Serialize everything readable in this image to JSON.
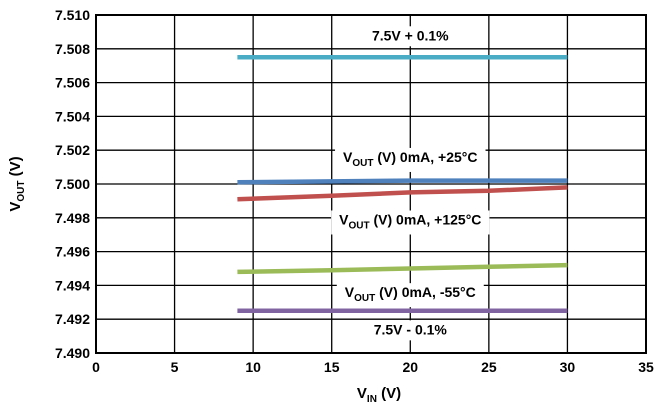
{
  "chart_data": {
    "type": "line",
    "xlabel": {
      "main": "V",
      "sub": "IN",
      "suffix": " (V)"
    },
    "ylabel": {
      "main": "V",
      "sub": "OUT",
      "suffix": " (V)"
    },
    "xlim": [
      0,
      35
    ],
    "ylim": [
      7.49,
      7.51
    ],
    "x_ticks": [
      0,
      5,
      10,
      15,
      20,
      25,
      30,
      35
    ],
    "x_tick_labels": [
      "0",
      "5",
      "10",
      "15",
      "20",
      "25",
      "30",
      "35"
    ],
    "y_ticks": [
      7.49,
      7.492,
      7.494,
      7.496,
      7.498,
      7.5,
      7.502,
      7.504,
      7.506,
      7.508,
      7.51
    ],
    "y_tick_labels": [
      "7.490",
      "7.492",
      "7.494",
      "7.496",
      "7.498",
      "7.500",
      "7.502",
      "7.504",
      "7.506",
      "7.508",
      "7.510"
    ],
    "grid": true,
    "series": [
      {
        "name": "7.5V + 0.1%",
        "color": "#4bacc6",
        "x": [
          9,
          30
        ],
        "y": [
          7.5075,
          7.5075
        ]
      },
      {
        "name": "VOUT (V) 0mA, +25°C",
        "color": "#4f81bd",
        "x": [
          9,
          20,
          30
        ],
        "y": [
          7.5001,
          7.5002,
          7.5002
        ]
      },
      {
        "name": "VOUT (V) 0mA, +125°C",
        "color": "#c0504d",
        "x": [
          9,
          15,
          20,
          25,
          30
        ],
        "y": [
          7.4991,
          7.4993,
          7.4995,
          7.4996,
          7.4998
        ]
      },
      {
        "name": "VOUT (V) 0mA, -55°C",
        "color": "#9bbb59",
        "x": [
          9,
          15,
          20,
          25,
          30
        ],
        "y": [
          7.4948,
          7.4949,
          7.495,
          7.4951,
          7.4952
        ]
      },
      {
        "name": "7.5V - 0.1%",
        "color": "#8064a2",
        "x": [
          9,
          30
        ],
        "y": [
          7.4925,
          7.4925
        ]
      }
    ],
    "annotations": [
      {
        "text": "7.5V + 0.1%",
        "x": 20,
        "y": 7.5088
      },
      {
        "main": "V",
        "sub": "OUT",
        "rest": " (V) 0mA, +25°C",
        "x": 20,
        "y": 7.5016
      },
      {
        "main": "V",
        "sub": "OUT",
        "rest": " (V) 0mA, +125°C",
        "x": 20,
        "y": 7.4979
      },
      {
        "main": "V",
        "sub": "OUT",
        "rest": " (V) 0mA, -55°C",
        "x": 20,
        "y": 7.4936
      },
      {
        "text": "7.5V - 0.1%",
        "x": 20,
        "y": 7.4914
      }
    ]
  }
}
